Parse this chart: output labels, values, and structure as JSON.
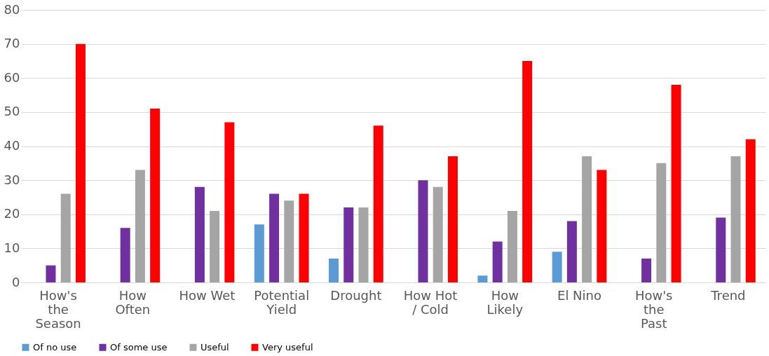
{
  "chart_data": {
    "type": "bar",
    "categories": [
      "How's the Season",
      "How Often",
      "How Wet",
      "Potential Yield",
      "Drought",
      "How Hot / Cold",
      "How Likely",
      "El Nino",
      "How's the Past",
      "Trend"
    ],
    "series": [
      {
        "name": "Of no use",
        "color": "#5b9bd5",
        "values": [
          0,
          0,
          0,
          17,
          7,
          0,
          2,
          9,
          0,
          0
        ]
      },
      {
        "name": "Of some use",
        "color": "#7030a0",
        "values": [
          5,
          16,
          28,
          26,
          22,
          30,
          12,
          18,
          7,
          19
        ]
      },
      {
        "name": "Useful",
        "color": "#a5a5a5",
        "values": [
          26,
          33,
          21,
          24,
          22,
          28,
          21,
          37,
          35,
          37
        ]
      },
      {
        "name": "Very useful",
        "color": "#ff0000",
        "values": [
          70,
          51,
          47,
          26,
          46,
          37,
          65,
          33,
          58,
          42
        ]
      }
    ],
    "ylim": [
      0,
      80
    ],
    "yticks": [
      0,
      10,
      20,
      30,
      40,
      50,
      60,
      70,
      80
    ],
    "grid": "y",
    "legend": "bottom"
  }
}
